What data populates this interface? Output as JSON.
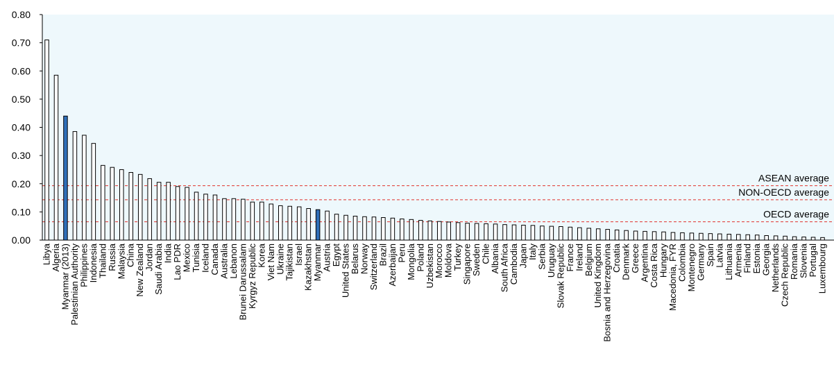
{
  "chart_data": {
    "type": "bar",
    "ylim": [
      0,
      0.8
    ],
    "yticks": [
      "0.00",
      "0.10",
      "0.20",
      "0.30",
      "0.40",
      "0.50",
      "0.60",
      "0.70",
      "0.80"
    ],
    "grid": false,
    "colors": {
      "plot_bg": "#eef8fc",
      "bar_fill": "#ffffff",
      "bar_highlight": "#2f6fb9",
      "bar_stroke": "#000000",
      "ref_line": "#e0302a"
    },
    "categories": [
      "Libya",
      "Algeria",
      "Myanmar (2013)",
      "Palestinian Authority",
      "Philippines",
      "Indonesia",
      "Thailand",
      "Russia",
      "Malaysia",
      "China",
      "New Zealand",
      "Jordan",
      "Saudi Arabia",
      "India",
      "Lao PDR",
      "Mexico",
      "Tunisia",
      "Iceland",
      "Canada",
      "Australia",
      "Lebanon",
      "Brunei Darussalam",
      "Kyrgyz Republic",
      "Korea",
      "Viet Nam",
      "Ukraine",
      "Tajikistan",
      "Israel",
      "Kazakhstan",
      "Myanmar",
      "Austria",
      "Egypt",
      "United States",
      "Belarus",
      "Norway",
      "Switzerland",
      "Brazil",
      "Azerbaijan",
      "Peru",
      "Mongolia",
      "Poland",
      "Uzbekistan",
      "Morocco",
      "Moldova",
      "Turkey",
      "Singapore",
      "Sweden",
      "Chile",
      "Albania",
      "South Africa",
      "Cambodia",
      "Japan",
      "Italy",
      "Serbia",
      "Uruguay",
      "Slovak Republic",
      "France",
      "Ireland",
      "Belgium",
      "United Kingdom",
      "Bosnia and Herzegovina",
      "Croatia",
      "Denmark",
      "Greece",
      "Argentina",
      "Costa Rica",
      "Hungary",
      "Macedonia, FYR",
      "Colombia",
      "Montenegro",
      "Germany",
      "Spain",
      "Latvia",
      "Lithuania",
      "Armenia",
      "Finland",
      "Estonia",
      "Georgia",
      "Netherlands",
      "Czech Republic",
      "Romania",
      "Slovenia",
      "Portugal",
      "Luxembourg"
    ],
    "values": [
      0.71,
      0.585,
      0.44,
      0.385,
      0.372,
      0.343,
      0.265,
      0.258,
      0.25,
      0.24,
      0.233,
      0.218,
      0.205,
      0.205,
      0.19,
      0.187,
      0.17,
      0.163,
      0.16,
      0.147,
      0.147,
      0.145,
      0.135,
      0.135,
      0.128,
      0.122,
      0.12,
      0.118,
      0.112,
      0.108,
      0.103,
      0.092,
      0.088,
      0.085,
      0.083,
      0.082,
      0.08,
      0.078,
      0.075,
      0.073,
      0.07,
      0.068,
      0.066,
      0.064,
      0.062,
      0.06,
      0.059,
      0.058,
      0.057,
      0.055,
      0.054,
      0.053,
      0.052,
      0.05,
      0.049,
      0.048,
      0.046,
      0.044,
      0.042,
      0.04,
      0.038,
      0.036,
      0.034,
      0.032,
      0.031,
      0.03,
      0.029,
      0.027,
      0.026,
      0.025,
      0.024,
      0.023,
      0.022,
      0.021,
      0.02,
      0.019,
      0.018,
      0.016,
      0.015,
      0.014,
      0.012,
      0.011,
      0.01,
      0.009
    ],
    "highlighted": [
      "Myanmar (2013)",
      "Myanmar"
    ],
    "reference_lines": [
      {
        "label": "ASEAN average",
        "value": 0.193
      },
      {
        "label": "NON-OECD average",
        "value": 0.143
      },
      {
        "label": "OECD average",
        "value": 0.065
      }
    ]
  }
}
